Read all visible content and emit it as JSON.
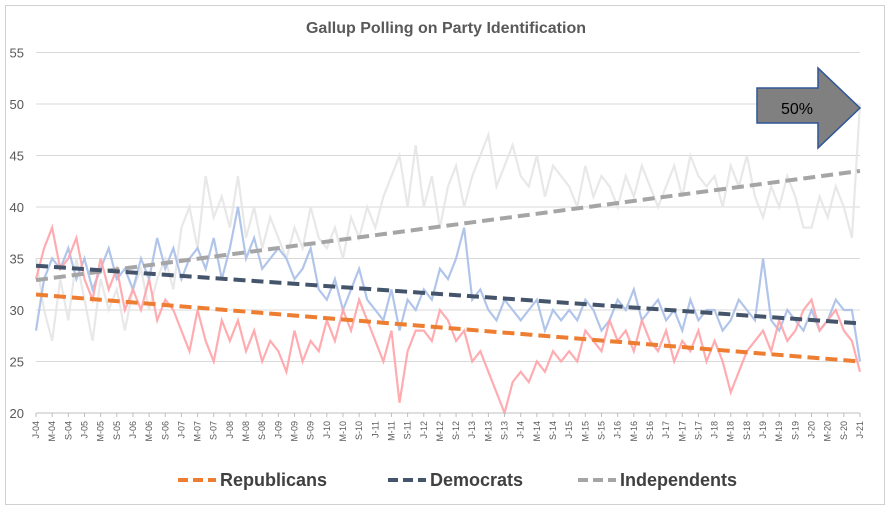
{
  "chart_data": {
    "type": "line",
    "title": "Gallup Polling on Party Identification",
    "xlabel": "",
    "ylabel": "",
    "ylim": [
      20,
      55
    ],
    "yticks": [
      20,
      25,
      30,
      35,
      40,
      45,
      50,
      55
    ],
    "grid": true,
    "legend_placement": "bottom",
    "x_start": "2004-01",
    "x_end": "2021-01",
    "x_step_months": 2,
    "xtick_labels": [
      "J-04",
      "M-04",
      "S-04",
      "J-05",
      "M-05",
      "S-05",
      "J-06",
      "M-06",
      "S-06",
      "J-07",
      "M-07",
      "S-07",
      "J-08",
      "M-08",
      "S-08",
      "J-09",
      "M-09",
      "S-09",
      "J-10",
      "M-10",
      "S-10",
      "J-11",
      "M-11",
      "S-11",
      "J-12",
      "M-12",
      "S-12",
      "J-13",
      "M-13",
      "S-13",
      "J-14",
      "M-14",
      "S-14",
      "J-15",
      "M-15",
      "S-15",
      "J-16",
      "M-16",
      "S-16",
      "J-17",
      "M-17",
      "S-17",
      "J-18",
      "M-18",
      "S-18",
      "J-19",
      "M-19",
      "S-19",
      "J-20",
      "M-20",
      "S-20",
      "J-21"
    ],
    "series": [
      {
        "name": "Republicans",
        "color": "#ffa3a8",
        "trend_color": "#ed7d31",
        "trend": [
          31.5,
          25.0
        ],
        "values": [
          33,
          36,
          38,
          34,
          35,
          37,
          33,
          31,
          35,
          32,
          34,
          30,
          32,
          30,
          33,
          29,
          31,
          30,
          28,
          26,
          30,
          27,
          25,
          29,
          27,
          29,
          26,
          28,
          25,
          27,
          26,
          24,
          28,
          25,
          27,
          26,
          29,
          27,
          30,
          28,
          31,
          29,
          27,
          25,
          28,
          21,
          26,
          28,
          28,
          27,
          30,
          29,
          27,
          28,
          25,
          26,
          24,
          22,
          20,
          23,
          24,
          23,
          25,
          24,
          26,
          25,
          26,
          25,
          28,
          27,
          26,
          29,
          27,
          28,
          26,
          29,
          27,
          26,
          28,
          25,
          27,
          26,
          28,
          25,
          27,
          25,
          22,
          24,
          26,
          27,
          28,
          26,
          29,
          27,
          28,
          30,
          31,
          28,
          29,
          30,
          28,
          27,
          24
        ]
      },
      {
        "name": "Democrats",
        "color": "#a9bfe8",
        "trend_color": "#44546a",
        "trend": [
          34.3,
          28.7
        ],
        "values": [
          28,
          33,
          35,
          34,
          36,
          33,
          35,
          32,
          34,
          36,
          33,
          34,
          32,
          35,
          33,
          37,
          34,
          36,
          33,
          35,
          36,
          34,
          37,
          33,
          36,
          40,
          35,
          37,
          34,
          35,
          36,
          35,
          33,
          34,
          36,
          32,
          31,
          33,
          30,
          32,
          34,
          31,
          30,
          29,
          32,
          28,
          31,
          30,
          32,
          31,
          34,
          33,
          35,
          38,
          31,
          32,
          30,
          29,
          31,
          30,
          29,
          30,
          31,
          28,
          30,
          29,
          30,
          29,
          31,
          30,
          28,
          29,
          31,
          30,
          32,
          29,
          30,
          31,
          29,
          30,
          28,
          31,
          29,
          30,
          30,
          28,
          29,
          31,
          30,
          29,
          35,
          29,
          28,
          30,
          29,
          28,
          30,
          28,
          29,
          31,
          30,
          30,
          25
        ]
      },
      {
        "name": "Independents",
        "color": "#e6e6e6",
        "trend_color": "#a5a5a5",
        "trend": [
          32.9,
          43.5
        ],
        "values": [
          35,
          30,
          27,
          33,
          29,
          35,
          31,
          27,
          33,
          30,
          32,
          28,
          32,
          34,
          30,
          33,
          35,
          32,
          38,
          40,
          36,
          43,
          39,
          41,
          38,
          43,
          37,
          40,
          36,
          39,
          37,
          35,
          38,
          36,
          40,
          37,
          36,
          38,
          35,
          39,
          37,
          40,
          38,
          41,
          43,
          45,
          40,
          46,
          40,
          43,
          38,
          42,
          44,
          40,
          43,
          45,
          47,
          42,
          44,
          46,
          43,
          42,
          45,
          41,
          44,
          43,
          42,
          40,
          44,
          41,
          43,
          42,
          40,
          43,
          41,
          44,
          42,
          40,
          42,
          44,
          41,
          45,
          43,
          42,
          43,
          40,
          44,
          42,
          45,
          41,
          39,
          42,
          40,
          43,
          41,
          38,
          38,
          41,
          39,
          42,
          40,
          37,
          50
        ]
      }
    ],
    "annotation": {
      "text": "50%",
      "shape": "right-arrow",
      "fill": "#808080",
      "stroke": "#2f5597"
    }
  }
}
